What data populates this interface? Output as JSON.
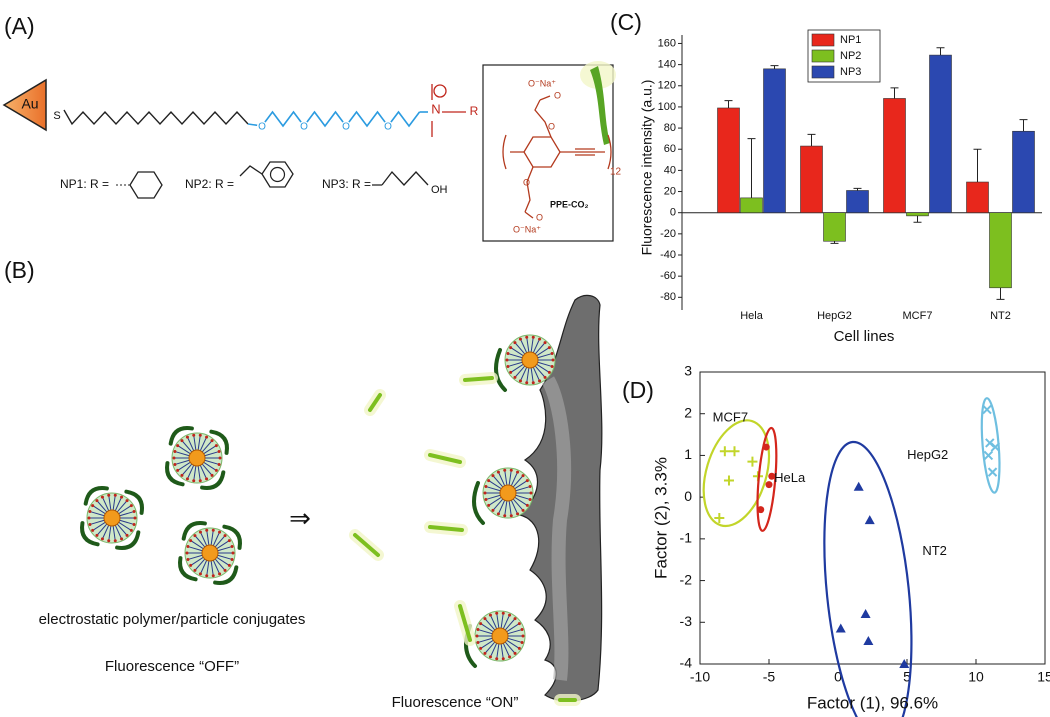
{
  "panels": {
    "a": {
      "label": "(A)",
      "gold": "Au",
      "sulfur": "S",
      "oxygen": [
        "O",
        "O",
        "O",
        "O"
      ],
      "nitrogen": "N",
      "r_group": "R",
      "np1": "NP1: R =",
      "np2": "NP2: R =",
      "np3": "NP3: R =",
      "hydroxyl": "OH",
      "polymer": {
        "carboxylate_top": "O⁻Na⁺",
        "carbonyl_top": "O",
        "ether_top": "O",
        "ether_bottom": "O",
        "carbonyl_bottom": "O",
        "carboxylate_bottom": "O⁻Na⁺",
        "repeat": "12",
        "name": "PPE-CO₂"
      }
    },
    "b": {
      "label": "(B)",
      "conjugates": "electrostatic polymer/particle conjugates",
      "off": "Fluorescence “OFF”",
      "on": "Fluorescence “ON”"
    },
    "c": {
      "label": "(C)"
    },
    "d": {
      "label": "(D)"
    }
  },
  "chart_data": [
    {
      "type": "bar",
      "ylabel": "Fluorescence intensity (a.u.)",
      "xlabel": "Cell lines",
      "categories": [
        "Hela",
        "HepG2",
        "MCF7",
        "NT2"
      ],
      "series": [
        {
          "name": "NP1",
          "color": "#e8271c",
          "values": [
            99,
            63,
            108,
            29
          ],
          "errors": [
            7,
            11,
            10,
            31
          ]
        },
        {
          "name": "NP2",
          "color": "#7dbf1f",
          "values": [
            14,
            -27,
            -3,
            -71
          ],
          "errors": [
            56,
            2,
            6,
            11
          ]
        },
        {
          "name": "NP3",
          "color": "#2b48b0",
          "values": [
            136,
            21,
            149,
            77
          ],
          "errors": [
            3,
            2,
            7,
            11
          ]
        }
      ],
      "ylim": [
        -92,
        168
      ],
      "yticks": [
        -80,
        -60,
        -40,
        -20,
        0,
        20,
        40,
        60,
        80,
        100,
        120,
        140,
        160
      ],
      "legend": "upper left"
    },
    {
      "type": "scatter",
      "xlabel": "Factor (1), 96.6%",
      "ylabel": "Factor (2), 3.3%",
      "xlim": [
        -10,
        15
      ],
      "ylim": [
        -4,
        3
      ],
      "xticks": [
        -10,
        -5,
        0,
        5,
        10,
        15
      ],
      "yticks": [
        -4,
        -3,
        -2,
        -1,
        0,
        1,
        2,
        3
      ],
      "series": [
        {
          "name": "MCF7",
          "color": "#c2d52a",
          "marker": "plus",
          "x": [
            -8.2,
            -7.5,
            -6.2,
            -5.8,
            -7.9,
            -8.6
          ],
          "y": [
            1.1,
            1.1,
            0.85,
            0.5,
            0.4,
            -0.5
          ]
        },
        {
          "name": "HeLa",
          "color": "#d4261c",
          "marker": "circle",
          "x": [
            -5.2,
            -4.8,
            -5.0,
            -5.6
          ],
          "y": [
            1.2,
            0.5,
            0.3,
            -0.3
          ]
        },
        {
          "name": "HepG2",
          "color": "#6fbfe0",
          "marker": "x",
          "x": [
            10.8,
            11.0,
            11.4,
            10.9,
            11.2
          ],
          "y": [
            2.1,
            1.3,
            1.2,
            1.0,
            0.6
          ]
        },
        {
          "name": "NT2",
          "color": "#1f3aa0",
          "marker": "triangle",
          "x": [
            1.5,
            2.3,
            0.2,
            2.0,
            2.2,
            4.8
          ],
          "y": [
            0.25,
            -0.55,
            -3.15,
            -2.8,
            -3.45,
            -4.0
          ]
        }
      ]
    }
  ]
}
